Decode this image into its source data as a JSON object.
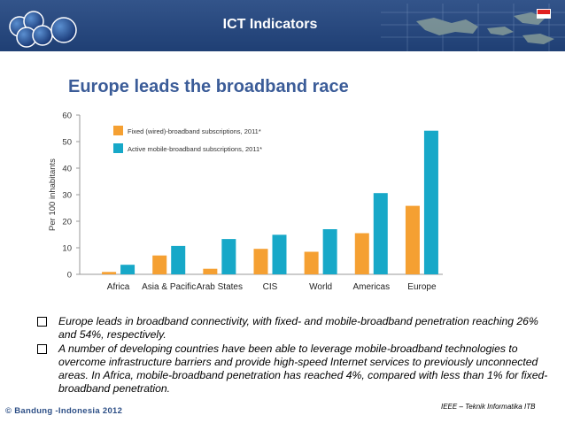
{
  "header": {
    "title": "ICT Indicators"
  },
  "slide": {
    "title": "Europe leads the broadband race"
  },
  "chart_data": {
    "type": "bar",
    "title": "",
    "xlabel": "",
    "ylabel": "Per 100 inhabitants",
    "ylim": [
      0,
      60
    ],
    "yticks": [
      "0",
      "10",
      "20",
      "30",
      "40",
      "50",
      "60"
    ],
    "ytick_values": [
      0,
      10,
      20,
      30,
      40,
      50,
      60
    ],
    "categories": [
      "Africa",
      "Asia & Pacific",
      "Arab States",
      "CIS",
      "World",
      "Americas",
      "Europe"
    ],
    "series": [
      {
        "name": "Fixed (wired)-broadband subscriptions, 2011*",
        "color": "#f5a032",
        "values": [
          0.9,
          7.1,
          2.1,
          9.6,
          8.5,
          15.5,
          25.8
        ]
      },
      {
        "name": "Active mobile-broadband subscriptions, 2011*",
        "color": "#17a8c8",
        "values": [
          3.6,
          10.7,
          13.3,
          14.9,
          17.0,
          30.6,
          54.1
        ]
      }
    ],
    "legend_position": "top-left",
    "grid": false
  },
  "bullets": [
    "Europe leads in broadband connectivity, with fixed- and mobile-broadband penetration reaching 26% and 54%, respectively.",
    "A number of developing countries have been able to leverage mobile-broadband technologies to overcome infrastructure barriers and provide high-speed Internet services to previously unconnected areas. In Africa, mobile-broadband penetration has reached 4%, compared with less than 1% for fixed-broadband penetration."
  ],
  "footer": {
    "left": "© Bandung -Indonesia 2012",
    "right": "IEEE – Teknik Informatika ITB"
  }
}
